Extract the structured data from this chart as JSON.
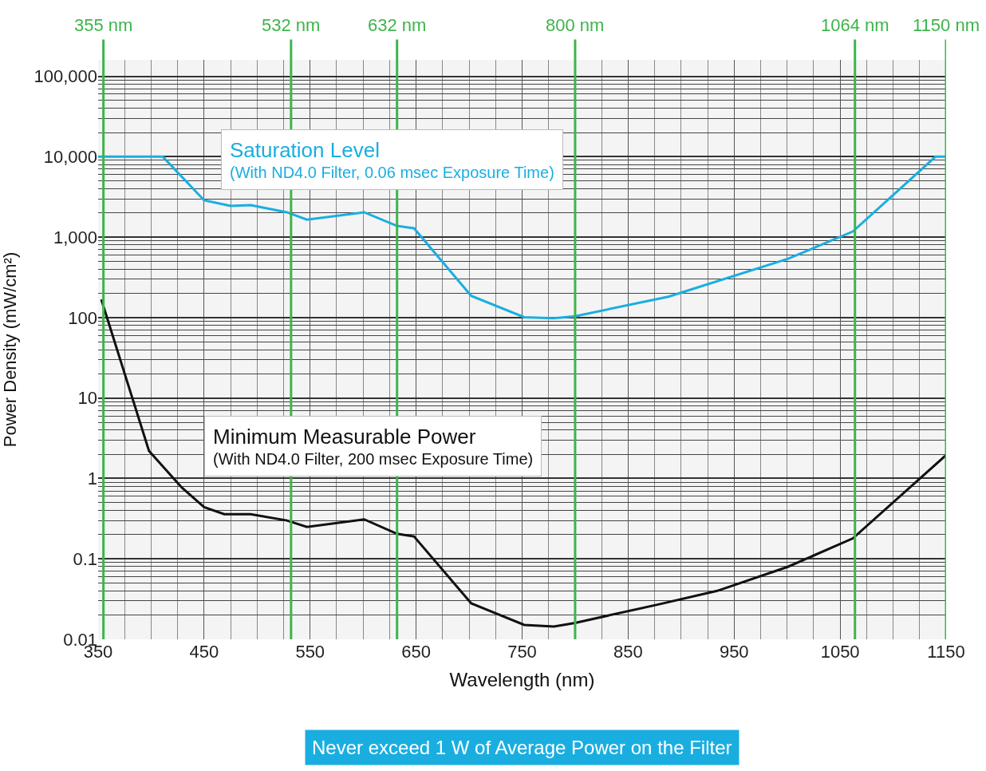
{
  "chart_data": {
    "type": "line",
    "xlabel": "Wavelength (nm)",
    "ylabel": "Power Density (mW/cm²)",
    "log": "y",
    "grid": true,
    "legend": false,
    "line_style": "solid",
    "marker": "none",
    "xlim": [
      350,
      1150
    ],
    "xticks": [
      350,
      450,
      550,
      650,
      750,
      850,
      950,
      1050,
      1150
    ],
    "ylim": [
      0.01,
      160000
    ],
    "yticks": [
      {
        "value": 0.01,
        "label": "0.01"
      },
      {
        "value": 0.1,
        "label": "0.1"
      },
      {
        "value": 1,
        "label": "1"
      },
      {
        "value": 10,
        "label": "10"
      },
      {
        "value": 100,
        "label": "100"
      },
      {
        "value": 1000,
        "label": "1,000"
      },
      {
        "value": 10000,
        "label": "10,000"
      },
      {
        "value": 100000,
        "label": "100,000"
      }
    ],
    "series": [
      {
        "name": "Saturation Level",
        "color": "#1aaee0",
        "x": [
          350,
          411,
          450,
          475,
          494,
          528,
          547,
          601,
          632,
          648,
          702,
          752,
          780,
          800,
          888,
          1001,
          1062,
          1140,
          1150
        ],
        "values": [
          10000,
          10000,
          2870,
          2450,
          2500,
          2040,
          1650,
          2040,
          1380,
          1290,
          186,
          101,
          98,
          104,
          182,
          540,
          1175,
          10000,
          10000
        ]
      },
      {
        "name": "Minimum Measurable Power",
        "color": "#111111",
        "x": [
          353,
          398,
          429,
          450,
          469,
          494,
          528,
          547,
          601,
          632,
          648,
          702,
          752,
          780,
          800,
          880,
          934,
          1001,
          1062,
          1150
        ],
        "values": [
          168,
          2.2,
          0.77,
          0.44,
          0.36,
          0.36,
          0.3,
          0.25,
          0.31,
          0.205,
          0.19,
          0.028,
          0.0151,
          0.0144,
          0.016,
          0.0274,
          0.04,
          0.08,
          0.18,
          1.95
        ]
      }
    ],
    "ref_lines": [
      {
        "axis": "x",
        "value": 355,
        "label": "355 nm",
        "color": "#3db54a"
      },
      {
        "axis": "x",
        "value": 532,
        "label": "532 nm",
        "color": "#3db54a"
      },
      {
        "axis": "x",
        "value": 632,
        "label": "632 nm",
        "color": "#3db54a"
      },
      {
        "axis": "x",
        "value": 800,
        "label": "800 nm",
        "color": "#3db54a"
      },
      {
        "axis": "x",
        "value": 1064,
        "label": "1064 nm",
        "color": "#3db54a"
      },
      {
        "axis": "x",
        "value": 1150,
        "label": "1150 nm",
        "color": "#3db54a"
      }
    ],
    "annotations": [
      "(With ND4.0 Filter, 0.06 msec Exposure Time)",
      "(With ND4.0 Filter, 200 msec Exposure Time)",
      "Never exceed 1 W of Average Power on the Filter"
    ]
  }
}
